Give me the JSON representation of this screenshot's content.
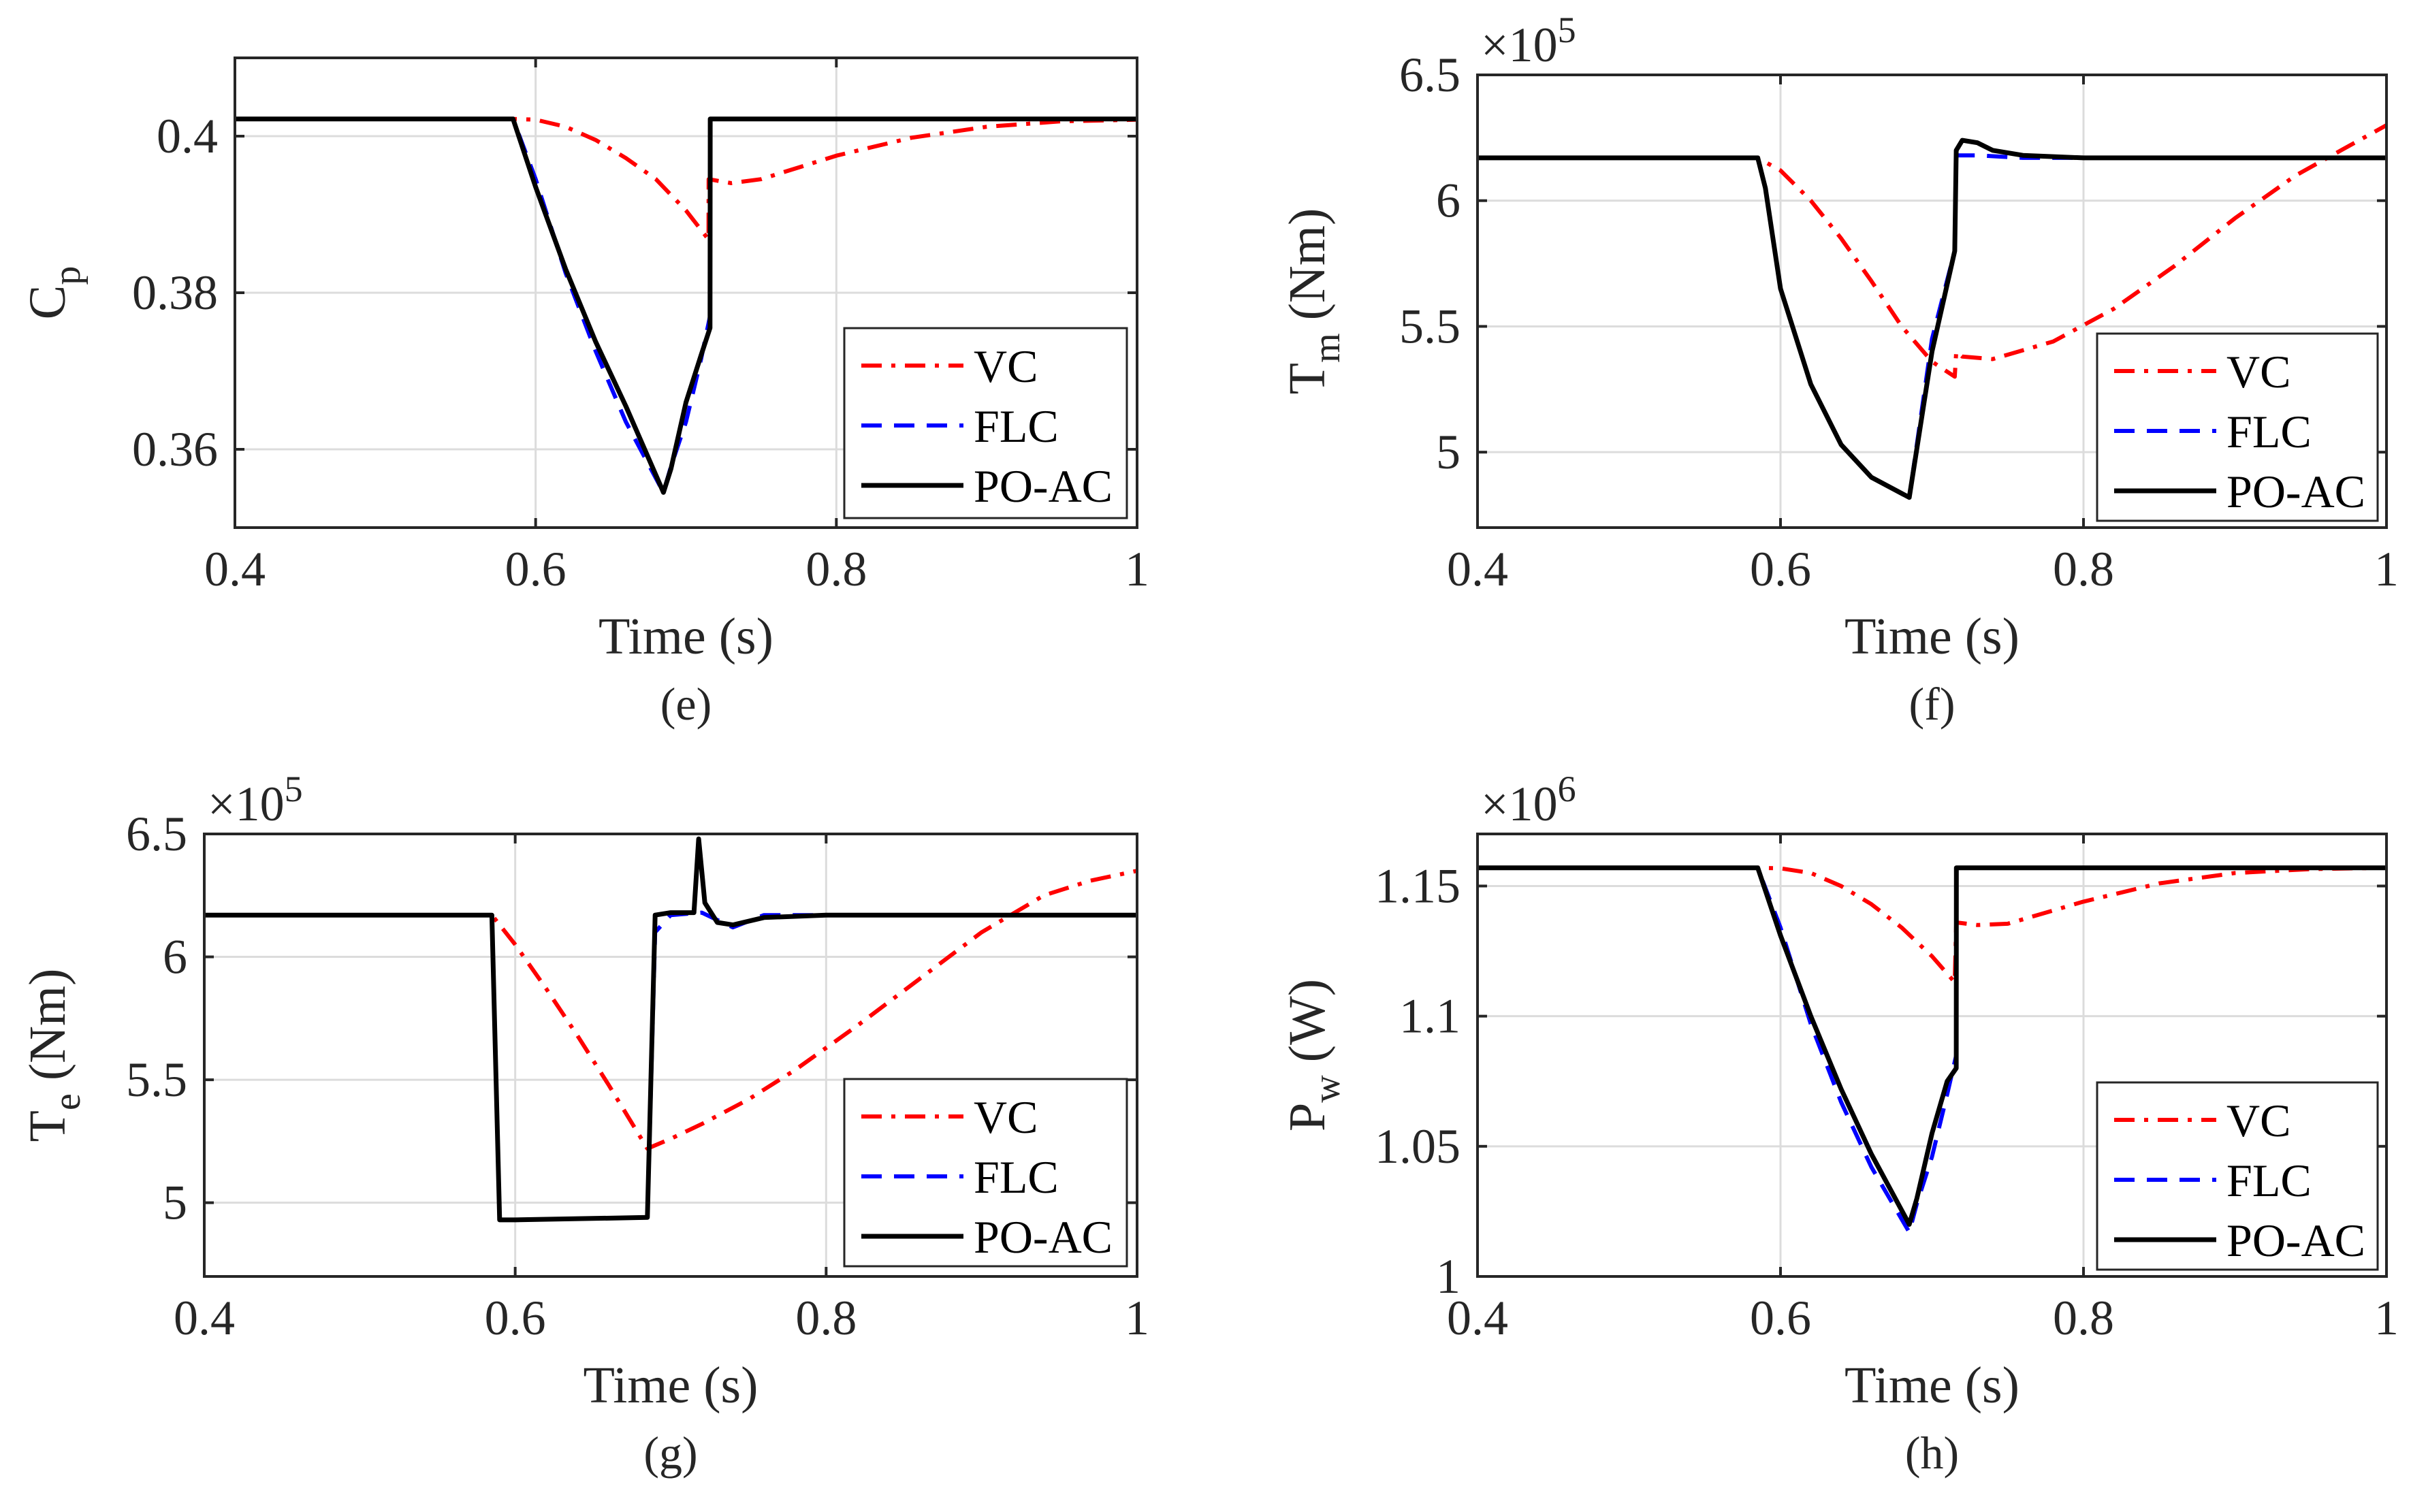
{
  "colors": {
    "VC": "#ff0000",
    "FLC": "#0000ff",
    "PO-AC": "#000000",
    "grid": "#dcdcdc",
    "axis": "#262626"
  },
  "chart_data": [
    {
      "type": "line",
      "panel": "e",
      "subtitle": "(e)",
      "xlabel": "Time (s)",
      "ylabel_main": "C",
      "ylabel_sub": "p",
      "ylabel_rest": "",
      "exponent": "",
      "xlim": [
        0.4,
        1.0
      ],
      "ylim": [
        0.35,
        0.41
      ],
      "xticks": [
        0.4,
        0.6,
        0.8,
        1.0
      ],
      "xtick_labels": [
        "0.4",
        "0.6",
        "0.8",
        "1"
      ],
      "yticks": [
        0.36,
        0.38,
        0.4
      ],
      "ytick_labels": [
        "0.36",
        "0.38",
        "0.4"
      ],
      "legend": [
        "VC",
        "FLC",
        "PO-AC"
      ],
      "legend_location": "lower-right",
      "series": [
        {
          "name": "VC",
          "style": "dashdot",
          "x": [
            0.4,
            0.585,
            0.6,
            0.62,
            0.64,
            0.66,
            0.68,
            0.7,
            0.715,
            0.7151,
            0.73,
            0.75,
            0.8,
            0.85,
            0.9,
            0.95,
            1.0
          ],
          "y": [
            0.4022,
            0.4022,
            0.4021,
            0.4012,
            0.3995,
            0.3972,
            0.3945,
            0.3905,
            0.3868,
            0.3945,
            0.394,
            0.3945,
            0.3975,
            0.3998,
            0.4012,
            0.4019,
            0.4021
          ]
        },
        {
          "name": "FLC",
          "style": "dashed",
          "x": [
            0.4,
            0.585,
            0.6,
            0.62,
            0.64,
            0.66,
            0.685,
            0.69,
            0.7,
            0.71,
            0.716,
            0.7161,
            0.73,
            1.0
          ],
          "y": [
            0.4022,
            0.4022,
            0.3945,
            0.3825,
            0.3725,
            0.3635,
            0.3545,
            0.3578,
            0.3635,
            0.3715,
            0.377,
            0.4022,
            0.4022,
            0.4022
          ]
        },
        {
          "name": "PO-AC",
          "style": "solid",
          "x": [
            0.4,
            0.585,
            0.6,
            0.62,
            0.64,
            0.66,
            0.685,
            0.69,
            0.7,
            0.71,
            0.716,
            0.7161,
            0.73,
            1.0
          ],
          "y": [
            0.4022,
            0.4022,
            0.3935,
            0.383,
            0.3737,
            0.3655,
            0.3545,
            0.3575,
            0.366,
            0.372,
            0.3755,
            0.4022,
            0.4022,
            0.4022
          ]
        }
      ]
    },
    {
      "type": "line",
      "panel": "f",
      "subtitle": "(f)",
      "xlabel": "Time (s)",
      "ylabel_main": "T",
      "ylabel_sub": "m",
      "ylabel_rest": " (Nm)",
      "exponent": "5",
      "exponent_base": "×10",
      "xlim": [
        0.4,
        1.0
      ],
      "ylim": [
        4.7,
        6.5
      ],
      "xticks": [
        0.4,
        0.6,
        0.8,
        1.0
      ],
      "xtick_labels": [
        "0.4",
        "0.6",
        "0.8",
        "1"
      ],
      "yticks": [
        5.0,
        5.5,
        6.0,
        6.5
      ],
      "ytick_labels": [
        "5",
        "5.5",
        "6",
        "6.5"
      ],
      "legend": [
        "VC",
        "FLC",
        "PO-AC"
      ],
      "legend_location": "lower-right",
      "series": [
        {
          "name": "VC",
          "style": "dashdot",
          "x": [
            0.4,
            0.585,
            0.6,
            0.62,
            0.64,
            0.66,
            0.68,
            0.7,
            0.715,
            0.716,
            0.72,
            0.74,
            0.78,
            0.82,
            0.86,
            0.9,
            0.94,
            0.97,
            1.0
          ],
          "y": [
            6.17,
            6.17,
            6.12,
            6.0,
            5.85,
            5.68,
            5.5,
            5.36,
            5.3,
            5.4,
            5.38,
            5.37,
            5.44,
            5.57,
            5.74,
            5.93,
            6.1,
            6.2,
            6.3
          ]
        },
        {
          "name": "FLC",
          "style": "dashed",
          "x": [
            0.4,
            0.585,
            0.59,
            0.6,
            0.62,
            0.64,
            0.66,
            0.685,
            0.7,
            0.715,
            0.716,
            0.73,
            0.76,
            1.0
          ],
          "y": [
            6.17,
            6.17,
            6.05,
            5.65,
            5.27,
            5.03,
            4.9,
            4.82,
            5.45,
            5.8,
            6.18,
            6.18,
            6.17,
            6.17
          ]
        },
        {
          "name": "PO-AC",
          "style": "solid",
          "x": [
            0.4,
            0.585,
            0.59,
            0.6,
            0.62,
            0.64,
            0.66,
            0.685,
            0.7,
            0.715,
            0.716,
            0.72,
            0.73,
            0.74,
            0.76,
            0.8,
            1.0
          ],
          "y": [
            6.17,
            6.17,
            6.05,
            5.65,
            5.27,
            5.03,
            4.9,
            4.82,
            5.4,
            5.8,
            6.2,
            6.24,
            6.23,
            6.2,
            6.18,
            6.17,
            6.17
          ]
        }
      ]
    },
    {
      "type": "line",
      "panel": "g",
      "subtitle": "(g)",
      "xlabel": "Time (s)",
      "ylabel_main": "T",
      "ylabel_sub": "e",
      "ylabel_rest": " (Nm)",
      "exponent": "5",
      "exponent_base": "×10",
      "xlim": [
        0.4,
        1.0
      ],
      "ylim": [
        4.7,
        6.5
      ],
      "xticks": [
        0.4,
        0.6,
        0.8,
        1.0
      ],
      "xtick_labels": [
        "0.4",
        "0.6",
        "0.8",
        "1"
      ],
      "yticks": [
        5.0,
        5.5,
        6.0,
        6.5
      ],
      "ytick_labels": [
        "5",
        "5.5",
        "6",
        "6.5"
      ],
      "legend": [
        "VC",
        "FLC",
        "PO-AC"
      ],
      "legend_location": "lower-right",
      "series": [
        {
          "name": "VC",
          "style": "dashdot",
          "x": [
            0.4,
            0.585,
            0.6,
            0.62,
            0.64,
            0.66,
            0.685,
            0.7,
            0.72,
            0.75,
            0.78,
            0.82,
            0.86,
            0.9,
            0.94,
            0.97,
            1.0
          ],
          "y": [
            6.17,
            6.17,
            6.05,
            5.87,
            5.68,
            5.48,
            5.22,
            5.26,
            5.32,
            5.42,
            5.54,
            5.72,
            5.91,
            6.1,
            6.25,
            6.31,
            6.35
          ]
        },
        {
          "name": "FLC",
          "style": "dashed",
          "x": [
            0.4,
            0.585,
            0.59,
            0.6,
            0.685,
            0.69,
            0.7,
            0.72,
            0.74,
            0.76,
            0.8,
            1.0
          ],
          "y": [
            6.17,
            6.17,
            4.93,
            4.93,
            4.94,
            6.1,
            6.17,
            6.18,
            6.12,
            6.17,
            6.17,
            6.17
          ]
        },
        {
          "name": "PO-AC",
          "style": "solid",
          "x": [
            0.4,
            0.585,
            0.59,
            0.6,
            0.685,
            0.69,
            0.7,
            0.715,
            0.718,
            0.722,
            0.73,
            0.74,
            0.76,
            0.8,
            1.0
          ],
          "y": [
            6.17,
            6.17,
            4.93,
            4.93,
            4.94,
            6.17,
            6.18,
            6.18,
            6.48,
            6.22,
            6.14,
            6.13,
            6.16,
            6.17,
            6.17
          ]
        }
      ]
    },
    {
      "type": "line",
      "panel": "h",
      "subtitle": "(h)",
      "xlabel": "Time (s)",
      "ylabel_main": "P",
      "ylabel_sub": "w",
      "ylabel_rest": " (W)",
      "exponent": "6",
      "exponent_base": "×10",
      "xlim": [
        0.4,
        1.0
      ],
      "ylim": [
        1.0,
        1.17
      ],
      "xticks": [
        0.4,
        0.6,
        0.8,
        1.0
      ],
      "xtick_labels": [
        "0.4",
        "0.6",
        "0.8",
        "1"
      ],
      "yticks": [
        1.0,
        1.05,
        1.1,
        1.15
      ],
      "ytick_labels": [
        "1",
        "1.05",
        "1.1",
        "1.15"
      ],
      "legend": [
        "VC",
        "FLC",
        "PO-AC"
      ],
      "legend_location": "lower-right",
      "series": [
        {
          "name": "VC",
          "style": "dashdot",
          "x": [
            0.4,
            0.585,
            0.6,
            0.62,
            0.64,
            0.66,
            0.68,
            0.7,
            0.715,
            0.716,
            0.73,
            0.75,
            0.8,
            0.85,
            0.9,
            0.95,
            1.0
          ],
          "y": [
            1.157,
            1.157,
            1.1568,
            1.155,
            1.15,
            1.143,
            1.134,
            1.123,
            1.113,
            1.136,
            1.135,
            1.1355,
            1.144,
            1.151,
            1.155,
            1.1565,
            1.157
          ]
        },
        {
          "name": "FLC",
          "style": "dashed",
          "x": [
            0.4,
            0.585,
            0.6,
            0.62,
            0.64,
            0.66,
            0.685,
            0.69,
            0.7,
            0.71,
            0.716,
            0.7161,
            0.73,
            1.0
          ],
          "y": [
            1.157,
            1.157,
            1.134,
            1.097,
            1.067,
            1.042,
            1.017,
            1.028,
            1.046,
            1.07,
            1.085,
            1.157,
            1.157,
            1.157
          ]
        },
        {
          "name": "PO-AC",
          "style": "solid",
          "x": [
            0.4,
            0.585,
            0.6,
            0.62,
            0.64,
            0.66,
            0.685,
            0.69,
            0.7,
            0.71,
            0.716,
            0.7161,
            0.73,
            1.0
          ],
          "y": [
            1.157,
            1.157,
            1.131,
            1.1,
            1.072,
            1.047,
            1.02,
            1.03,
            1.055,
            1.075,
            1.08,
            1.157,
            1.157,
            1.157
          ]
        }
      ]
    }
  ]
}
